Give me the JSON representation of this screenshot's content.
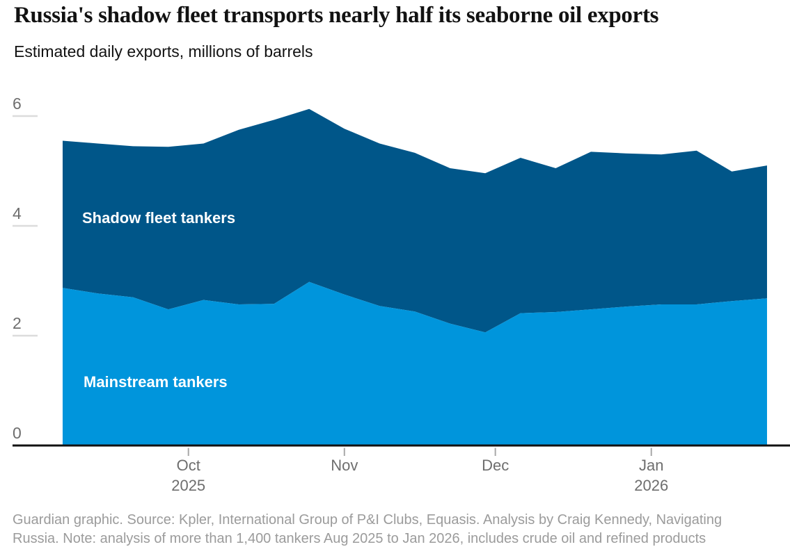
{
  "chart_data": {
    "type": "area",
    "stacked": true,
    "title": "Russia's shadow fleet transports nearly half its seaborne oil exports",
    "subtitle": "Estimated daily exports, millions of barrels",
    "x_days": [
      0,
      7,
      14,
      21,
      28,
      35,
      42,
      49,
      56,
      63,
      70,
      77,
      84,
      91,
      98,
      105,
      112,
      119,
      126,
      133,
      140
    ],
    "series": [
      {
        "name": "Mainstream tankers",
        "color": "#0095dc",
        "values": [
          2.87,
          2.77,
          2.7,
          2.48,
          2.65,
          2.57,
          2.58,
          2.98,
          2.75,
          2.54,
          2.44,
          2.22,
          2.06,
          2.41,
          2.43,
          2.48,
          2.53,
          2.57,
          2.57,
          2.63,
          2.68
        ]
      },
      {
        "name": "Shadow fleet tankers",
        "color": "#005689",
        "values": [
          2.68,
          2.73,
          2.75,
          2.96,
          2.85,
          3.18,
          3.35,
          3.15,
          3.02,
          2.96,
          2.89,
          2.83,
          2.9,
          2.83,
          2.62,
          2.87,
          2.79,
          2.73,
          2.8,
          2.36,
          2.42
        ]
      }
    ],
    "y_axis": {
      "ticks": [
        {
          "label": "6",
          "value": 6
        },
        {
          "label": "4",
          "value": 4
        },
        {
          "label": "2",
          "value": 2
        },
        {
          "label": "0",
          "value": 0
        }
      ],
      "range": [
        0,
        6.35
      ]
    },
    "x_axis": {
      "ticks": [
        {
          "label": "Oct",
          "sublabel": "2025",
          "day": 25
        },
        {
          "label": "Nov",
          "sublabel": "",
          "day": 56
        },
        {
          "label": "Dec",
          "sublabel": "",
          "day": 86
        },
        {
          "label": "Jan",
          "sublabel": "2026",
          "day": 117
        }
      ]
    },
    "legend_position": "labels inside areas",
    "grid": "short y tick dashes only",
    "source": [
      "Guardian graphic. Source: Kpler, International Group of P&I Clubs, Equasis. Analysis by Craig Kennedy, Navigating",
      "Russia. Note: analysis of more than 1,400 tankers Aug 2025 to Jan 2026, includes crude oil and refined products"
    ],
    "colors": {
      "shadow_fleet": "#005689",
      "mainstream": "#0095dc",
      "axis_line": "#121212",
      "y_tick_line": "#dcdcdc",
      "x_tick_mark": "#a8a8a8",
      "axis_text": "#6e6e6e",
      "source_text": "#9b9b9b"
    }
  }
}
